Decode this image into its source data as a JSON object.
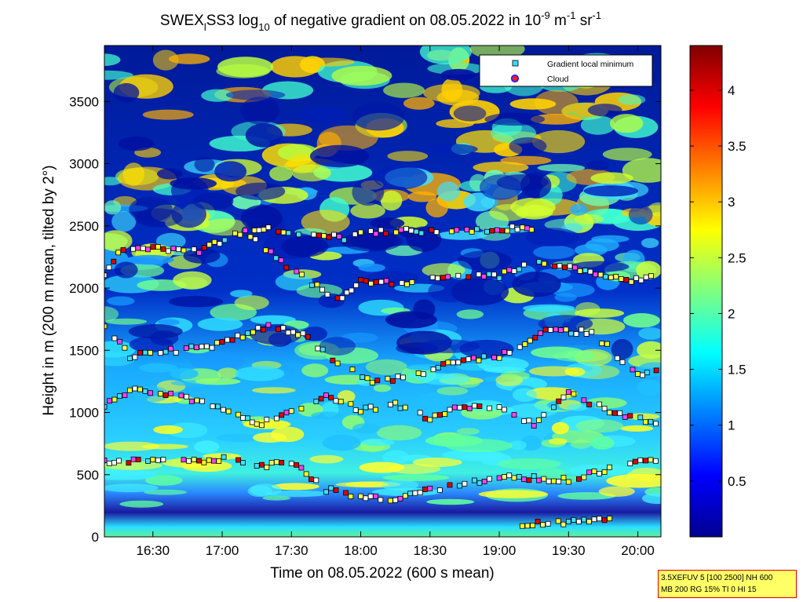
{
  "title": {
    "prefix": "SWEX",
    "sub1": "l",
    "mid": "SS3 log",
    "sub2": "10",
    "rest": " of negative gradient on 08.05.2022 in 10",
    "exp1": "-9",
    "unit1": " m",
    "exp2": "-1",
    "unit2": " sr",
    "exp3": "-1"
  },
  "xlabel": "Time on 08.05.2022 (600 s mean)",
  "ylabel": "Height in m (200 m mean, tilted by 2°)",
  "legend": {
    "local_min": "Gradient local minimum",
    "cloud": "Cloud"
  },
  "info_line1": "3.5XEFUV 5 [100 2500] NH 600",
  "info_line2": "MB 200 RG 15% TI 0 HI 15",
  "chart_data": {
    "type": "heatmap",
    "x_axis": {
      "ticks": [
        "16:30",
        "17:00",
        "17:30",
        "18:00",
        "18:30",
        "19:00",
        "19:30",
        "20:00"
      ],
      "range": [
        "16:09",
        "20:10"
      ]
    },
    "y_axis": {
      "ticks": [
        0,
        500,
        1000,
        1500,
        2000,
        2500,
        3000,
        3500
      ],
      "range": [
        0,
        3950
      ]
    },
    "colorbar": {
      "ticks": [
        "0.5",
        "1",
        "1.5",
        "2",
        "2.5",
        "3",
        "3.5",
        "4"
      ],
      "range": [
        0,
        4.4
      ],
      "colormap": "jet"
    },
    "gradient_local_minimum_layers": [
      {
        "name": "L1",
        "points": [
          [
            "16:09",
            600
          ],
          [
            "16:30",
            620
          ],
          [
            "16:50",
            600
          ],
          [
            "17:05",
            650
          ],
          [
            "17:15",
            560
          ],
          [
            "17:30",
            600
          ],
          [
            "17:45",
            380
          ],
          [
            "18:00",
            330
          ],
          [
            "18:15",
            300
          ],
          [
            "18:30",
            380
          ],
          [
            "18:45",
            420
          ],
          [
            "19:00",
            480
          ],
          [
            "19:30",
            460
          ],
          [
            "19:50",
            560
          ],
          [
            "20:10",
            630
          ]
        ]
      },
      {
        "name": "L2",
        "points": [
          [
            "16:09",
            1050
          ],
          [
            "16:20",
            1180
          ],
          [
            "16:40",
            1150
          ],
          [
            "17:05",
            1000
          ],
          [
            "17:15",
            900
          ],
          [
            "17:30",
            1000
          ],
          [
            "17:45",
            1150
          ],
          [
            "18:00",
            1020
          ],
          [
            "18:15",
            1060
          ],
          [
            "18:30",
            950
          ],
          [
            "18:45",
            1050
          ],
          [
            "19:00",
            1040
          ],
          [
            "19:15",
            900
          ],
          [
            "19:30",
            1150
          ],
          [
            "19:50",
            1000
          ],
          [
            "20:10",
            900
          ]
        ]
      },
      {
        "name": "L3",
        "points": [
          [
            "16:09",
            1700
          ],
          [
            "16:20",
            1450
          ],
          [
            "16:40",
            1500
          ],
          [
            "17:00",
            1550
          ],
          [
            "17:20",
            1700
          ],
          [
            "17:35",
            1620
          ],
          [
            "17:50",
            1400
          ],
          [
            "18:05",
            1250
          ],
          [
            "18:25",
            1300
          ],
          [
            "18:40",
            1400
          ],
          [
            "19:00",
            1450
          ],
          [
            "19:20",
            1650
          ],
          [
            "19:40",
            1650
          ],
          [
            "20:00",
            1300
          ],
          [
            "20:10",
            1350
          ]
        ]
      },
      {
        "name": "L4",
        "points": [
          [
            "16:09",
            2100
          ],
          [
            "16:15",
            2300
          ],
          [
            "16:30",
            2320
          ],
          [
            "16:50",
            2300
          ],
          [
            "17:10",
            2460
          ],
          [
            "17:30",
            2150
          ],
          [
            "17:50",
            1900
          ],
          [
            "18:00",
            2050
          ],
          [
            "18:20",
            2050
          ],
          [
            "18:40",
            2100
          ],
          [
            "19:00",
            2100
          ],
          [
            "19:15",
            2200
          ],
          [
            "19:35",
            2150
          ],
          [
            "19:55",
            2050
          ],
          [
            "20:10",
            2100
          ]
        ]
      },
      {
        "name": "L5",
        "points": [
          [
            "17:10",
            2470
          ],
          [
            "17:20",
            2480
          ],
          [
            "17:55",
            2400
          ],
          [
            "18:00",
            2450
          ],
          [
            "19:10",
            2480
          ],
          [
            "19:20",
            2460
          ]
        ]
      },
      {
        "name": "L6",
        "points": [
          [
            "19:10",
            100
          ],
          [
            "19:30",
            120
          ],
          [
            "19:50",
            150
          ]
        ]
      }
    ]
  }
}
